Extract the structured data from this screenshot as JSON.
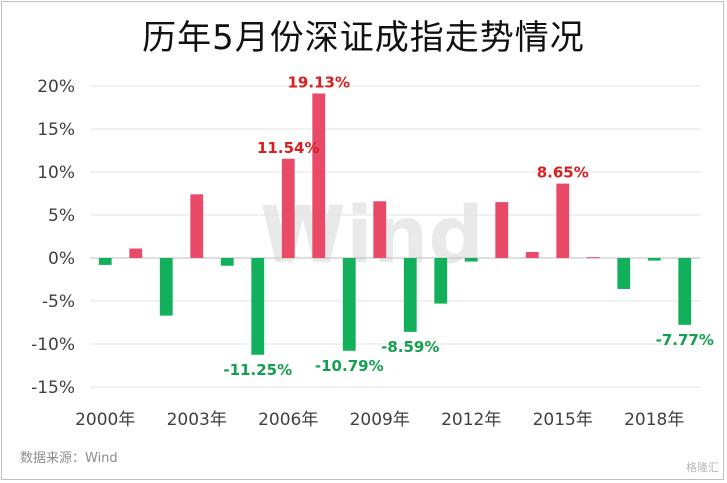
{
  "title": "历年5月份深证成指走势情况",
  "source": "数据来源：Wind",
  "watermark": "Wind",
  "corner_mark": "格隆汇",
  "colors": {
    "positive": "#e84a67",
    "negative": "#12b05a",
    "label_positive": "#d81e1e",
    "label_negative": "#12a050"
  },
  "chart_data": {
    "type": "bar",
    "title": "历年5月份深证成指走势情况",
    "xlabel": "",
    "ylabel": "",
    "categories": [
      "2000年",
      "2001年",
      "2002年",
      "2003年",
      "2004年",
      "2005年",
      "2006年",
      "2007年",
      "2008年",
      "2009年",
      "2010年",
      "2011年",
      "2012年",
      "2013年",
      "2014年",
      "2015年",
      "2016年",
      "2017年",
      "2018年",
      "2019年"
    ],
    "tick_labels": [
      {
        "index": 0,
        "label": "2000年"
      },
      {
        "index": 3,
        "label": "2003年"
      },
      {
        "index": 6,
        "label": "2006年"
      },
      {
        "index": 9,
        "label": "2009年"
      },
      {
        "index": 12,
        "label": "2012年"
      },
      {
        "index": 15,
        "label": "2015年"
      },
      {
        "index": 18,
        "label": "2018年"
      }
    ],
    "values": [
      -0.8,
      1.1,
      -6.7,
      7.4,
      -0.9,
      -11.25,
      11.54,
      19.13,
      -10.79,
      6.6,
      -8.59,
      -5.3,
      -0.4,
      6.5,
      0.7,
      8.65,
      0.1,
      -3.6,
      -0.3,
      -7.77
    ],
    "data_labels": [
      {
        "index": 5,
        "text": "-11.25%"
      },
      {
        "index": 6,
        "text": "11.54%"
      },
      {
        "index": 7,
        "text": "19.13%"
      },
      {
        "index": 8,
        "text": "-10.79%"
      },
      {
        "index": 10,
        "text": "-8.59%"
      },
      {
        "index": 15,
        "text": "8.65%"
      },
      {
        "index": 19,
        "text": "-7.77%"
      }
    ],
    "yticks": [
      20,
      15,
      10,
      5,
      0,
      -5,
      -10,
      -15
    ],
    "ytick_labels": [
      "20%",
      "15%",
      "10%",
      "5%",
      "0%",
      "-5%",
      "-10%",
      "-15%"
    ],
    "ylim": [
      -15,
      20
    ],
    "grid": true,
    "legend": "none"
  }
}
